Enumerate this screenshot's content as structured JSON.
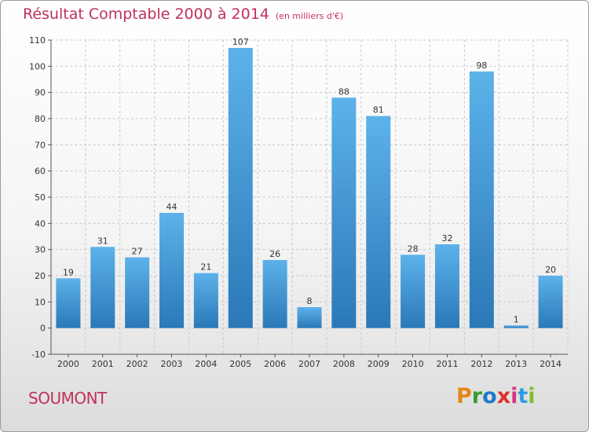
{
  "header": {
    "title": "Résultat Comptable 2000 à 2014",
    "unit": "(en milliers d'€)"
  },
  "footer": {
    "commune": "SOUMONT",
    "brand": "Proxiti",
    "brand_colors": [
      "#e7861a",
      "#3a9a2e",
      "#1f7ac9",
      "#e0302b",
      "#d8367f",
      "#2f9de0",
      "#7cbf2b"
    ]
  },
  "colors": {
    "title": "#c0315a",
    "bar_top": "#5db2ea",
    "bar_bottom": "#2a78b8",
    "grid": "#c8c8c8"
  },
  "chart_data": {
    "type": "bar",
    "title": "Résultat Comptable 2000 à 2014",
    "subtitle": "(en milliers d'€)",
    "categories": [
      "2000",
      "2001",
      "2002",
      "2003",
      "2004",
      "2005",
      "2006",
      "2007",
      "2008",
      "2009",
      "2010",
      "2011",
      "2012",
      "2013",
      "2014"
    ],
    "values": [
      19,
      31,
      27,
      44,
      21,
      107,
      26,
      8,
      88,
      81,
      28,
      32,
      98,
      1,
      20
    ],
    "data_labels": [
      "19",
      "31",
      "27",
      "44",
      "21",
      "107",
      "26",
      "8",
      "88",
      "81",
      "28",
      "32",
      "98",
      "1",
      "20"
    ],
    "ylim": [
      -10,
      110
    ],
    "yticks": [
      -10,
      0,
      10,
      20,
      30,
      40,
      50,
      60,
      70,
      80,
      90,
      100,
      110
    ],
    "grid": true,
    "grid_style": "dashed"
  }
}
